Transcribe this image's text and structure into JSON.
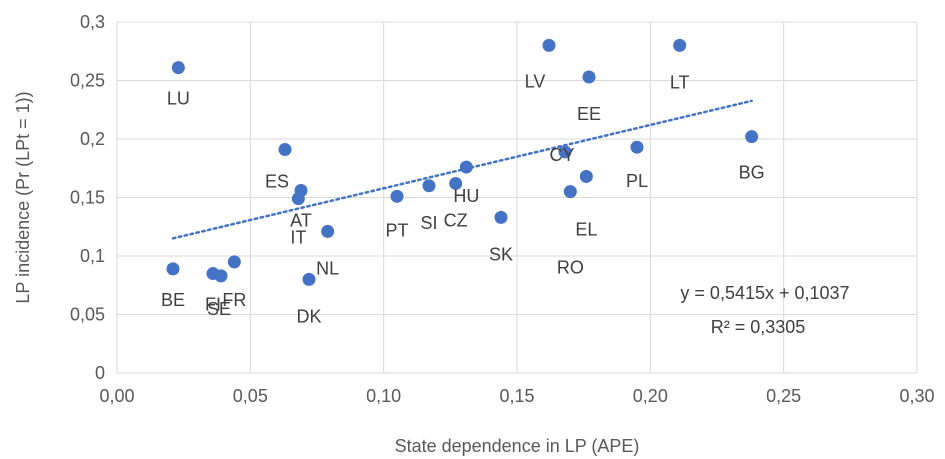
{
  "chart_data": {
    "type": "scatter",
    "xlabel": "State dependence in LP (APE)",
    "ylabel": "LP incidence (Pr (LPt = 1))",
    "xlim": [
      0,
      0.3
    ],
    "ylim": [
      0,
      0.3
    ],
    "x_ticks": [
      "0,00",
      "0,05",
      "0,10",
      "0,15",
      "0,20",
      "0,25",
      "0,30"
    ],
    "y_ticks": [
      "0",
      "0,05",
      "0,1",
      "0,15",
      "0,2",
      "0,25",
      "0,3"
    ],
    "grid": true,
    "point_color": "#4472C4",
    "trendline": {
      "slope": 0.5415,
      "intercept": 0.1037,
      "x_range": [
        0.021,
        0.238
      ],
      "style": "dotted",
      "equation_label": "y = 0,5415x + 0,1037",
      "r2_label": "R² = 0,3305"
    },
    "points": [
      {
        "label": "LU",
        "x": 0.023,
        "y": 0.261
      },
      {
        "label": "BE",
        "x": 0.021,
        "y": 0.089
      },
      {
        "label": "FI",
        "x": 0.036,
        "y": 0.085
      },
      {
        "label": "SE",
        "x": 0.039,
        "y": 0.083
      },
      {
        "label": "FR",
        "x": 0.044,
        "y": 0.095
      },
      {
        "label": "ES",
        "x": 0.063,
        "y": 0.191
      },
      {
        "label": "AT",
        "x": 0.069,
        "y": 0.156
      },
      {
        "label": "IT",
        "x": 0.068,
        "y": 0.149
      },
      {
        "label": "NL",
        "x": 0.079,
        "y": 0.121
      },
      {
        "label": "DK",
        "x": 0.072,
        "y": 0.08
      },
      {
        "label": "PT",
        "x": 0.105,
        "y": 0.151
      },
      {
        "label": "SI",
        "x": 0.117,
        "y": 0.16
      },
      {
        "label": "CZ",
        "x": 0.127,
        "y": 0.162
      },
      {
        "label": "HU",
        "x": 0.131,
        "y": 0.176
      },
      {
        "label": "SK",
        "x": 0.144,
        "y": 0.133
      },
      {
        "label": "LV",
        "x": 0.162,
        "y": 0.28
      },
      {
        "label": "EE",
        "x": 0.177,
        "y": 0.253
      },
      {
        "label": "CY",
        "x": 0.168,
        "y": 0.189
      },
      {
        "label": "RO",
        "x": 0.17,
        "y": 0.155
      },
      {
        "label": "EL",
        "x": 0.176,
        "y": 0.168
      },
      {
        "label": "PL",
        "x": 0.195,
        "y": 0.193
      },
      {
        "label": "LT",
        "x": 0.211,
        "y": 0.28
      },
      {
        "label": "BG",
        "x": 0.238,
        "y": 0.202
      }
    ]
  }
}
